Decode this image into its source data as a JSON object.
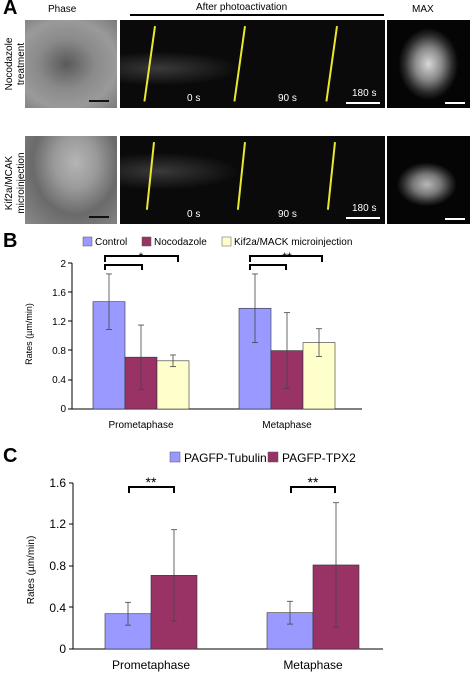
{
  "panelA": {
    "letter": "A",
    "col_phase": "Phase",
    "col_after": "After photoactivation",
    "col_max": "MAX",
    "rows": [
      {
        "label_line1": "Nocodazole",
        "label_line2": "treatment",
        "times": [
          "0 s",
          "90 s",
          "180 s"
        ]
      },
      {
        "label_line1": "Kif2a/MCAK",
        "label_line2": "microinjection",
        "times": [
          "0 s",
          "90 s",
          "180 s"
        ]
      }
    ]
  },
  "panelB": {
    "letter": "B",
    "colors": {
      "Control": "#9999ff",
      "Nocodazole": "#993366",
      "Kif2a": "#ffffcc"
    },
    "chart_data": {
      "type": "bar",
      "title": "",
      "categories": [
        "Prometaphase",
        "Metaphase"
      ],
      "series": [
        {
          "name": "Control",
          "values": [
            1.47,
            1.38
          ],
          "errors": [
            0.38,
            0.47
          ]
        },
        {
          "name": "Nocodazole",
          "values": [
            0.71,
            0.8
          ],
          "errors": [
            0.44,
            0.52
          ]
        },
        {
          "name": "Kif2a/MACK microinjection",
          "values": [
            0.66,
            0.91
          ],
          "errors": [
            0.08,
            0.19
          ]
        }
      ],
      "ylabel": "Rates (µm/min)",
      "xlabel": "",
      "ylim": [
        0,
        2
      ],
      "yticks": [
        "0",
        "0.4",
        "0.8",
        "1.2",
        "1.6",
        "2"
      ],
      "legend": "top",
      "significance": [
        {
          "category": "Prometaphase",
          "pair": [
            "Control",
            "Nocodazole"
          ],
          "label": ""
        },
        {
          "category": "Prometaphase",
          "pair": [
            "Control",
            "Kif2a/MACK microinjection"
          ],
          "label": "*"
        },
        {
          "category": "Metaphase",
          "pair": [
            "Control",
            "Nocodazole"
          ],
          "label": ""
        },
        {
          "category": "Metaphase",
          "pair": [
            "Control",
            "Kif2a/MACK microinjection"
          ],
          "label": "**"
        }
      ]
    }
  },
  "panelC": {
    "letter": "C",
    "colors": {
      "Tubulin": "#9999ff",
      "TPX2": "#993366"
    },
    "chart_data": {
      "type": "bar",
      "title": "",
      "categories": [
        "Prometaphase",
        "Metaphase"
      ],
      "series": [
        {
          "name": "PAGFP-Tubulin",
          "values": [
            0.34,
            0.35
          ],
          "errors": [
            0.11,
            0.11
          ]
        },
        {
          "name": "PAGFP-TPX2",
          "values": [
            0.71,
            0.81
          ],
          "errors": [
            0.44,
            0.6
          ]
        }
      ],
      "ylabel": "Rates (µm/min)",
      "xlabel": "",
      "ylim": [
        0,
        1.6
      ],
      "yticks": [
        "0",
        "0.4",
        "0.8",
        "1.2",
        "1.6"
      ],
      "legend": "top",
      "significance": [
        {
          "category": "Prometaphase",
          "pair": [
            "PAGFP-Tubulin",
            "PAGFP-TPX2"
          ],
          "label": "**"
        },
        {
          "category": "Metaphase",
          "pair": [
            "PAGFP-Tubulin",
            "PAGFP-TPX2"
          ],
          "label": "**"
        }
      ]
    }
  }
}
